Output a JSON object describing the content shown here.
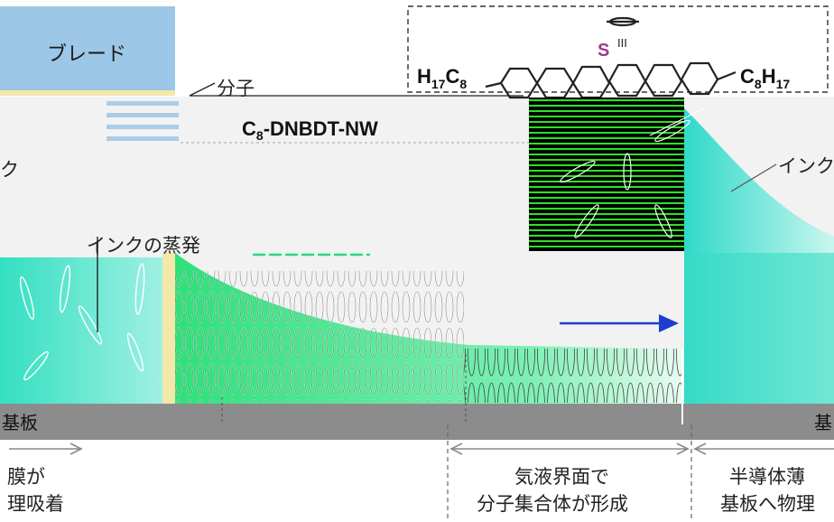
{
  "labels": {
    "blade": "ブレード",
    "molecule": "分子",
    "compound": "C8-DNBDT-NW",
    "compound_main": "C",
    "compound_sub": "8",
    "compound_rest": "-DNBDT-NW",
    "ink_left": "ク",
    "ink_right": "インク",
    "evaporation": "インクの蒸発",
    "substrate_left": "基板",
    "substrate_right": "基",
    "sulfur_top": "S",
    "chain_left": "H17C8",
    "chain_left_main": "H",
    "chain_left_sub1": "17",
    "chain_left_c": "C",
    "chain_left_sub2": "8",
    "chain_right_c": "C",
    "chain_right_sub1": "8",
    "chain_right_h": "H",
    "chain_right_sub2": "17",
    "bond_marker": "III"
  },
  "captions": {
    "left_line1": "膜が",
    "left_line2": "理吸着",
    "middle_line1": "気液界面で",
    "middle_line2": "分子集合体が形成",
    "right_line1": "半導体薄",
    "right_line2": "基板へ物理"
  },
  "colors": {
    "blade": "#9dc7e6",
    "ink_green": "#3fe07f",
    "ink_cyan": "#2fd8c4",
    "substrate": "#8c8c8c",
    "inset_bg": "#000000",
    "inset_green": "#27e21f",
    "arrow_blue": "#1a3fd0",
    "sulfur": "#a03a8a"
  }
}
